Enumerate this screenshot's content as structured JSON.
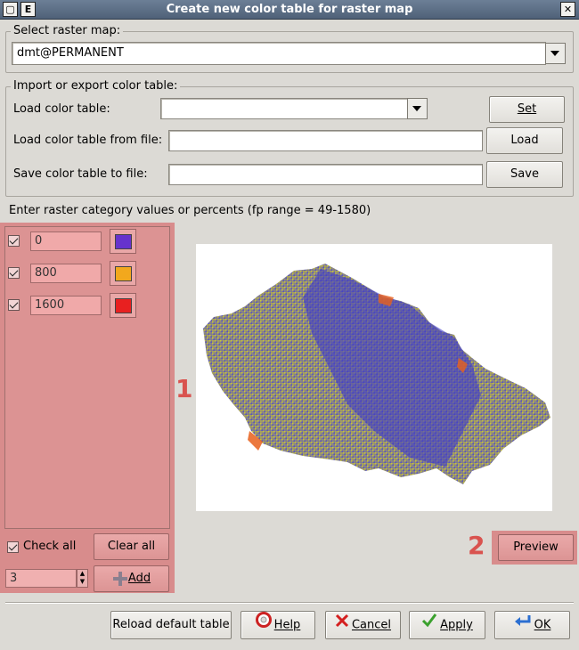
{
  "window": {
    "title": "Create new color table for raster map",
    "menu_button_label": "E"
  },
  "select_map": {
    "group_label": "Select raster map:",
    "value": "dmt@PERMANENT"
  },
  "import_export": {
    "group_label": "Import or export color table:",
    "load_label": "Load color table:",
    "load_value": "",
    "set_button": "Set",
    "load_file_label": "Load color table from file:",
    "load_file_value": "",
    "load_button": "Load",
    "save_file_label": "Save color table to file:",
    "save_file_value": "",
    "save_button": "Save"
  },
  "rules": {
    "header": "Enter raster category values or percents (fp range = 49-1580)",
    "items": [
      {
        "value": "0",
        "color": "#6633cc",
        "checked": true
      },
      {
        "value": "800",
        "color": "#f2a81d",
        "checked": true
      },
      {
        "value": "1600",
        "color": "#e82020",
        "checked": true
      }
    ],
    "check_all_label": "Check all",
    "clear_all_button": "Clear all",
    "count_value": "3",
    "add_button": "Add"
  },
  "markers": {
    "one": "1",
    "two": "2"
  },
  "preview_button": "Preview",
  "footer": {
    "reload_button": "Reload default table",
    "help_button": "Help",
    "cancel_button": "Cancel",
    "apply_button": "Apply",
    "ok_button": "OK"
  },
  "icons": {
    "help": "help-lifebuoy-icon",
    "cancel": "cancel-x-icon",
    "apply": "apply-check-icon",
    "ok": "ok-enter-icon",
    "add": "add-plus-icon"
  }
}
